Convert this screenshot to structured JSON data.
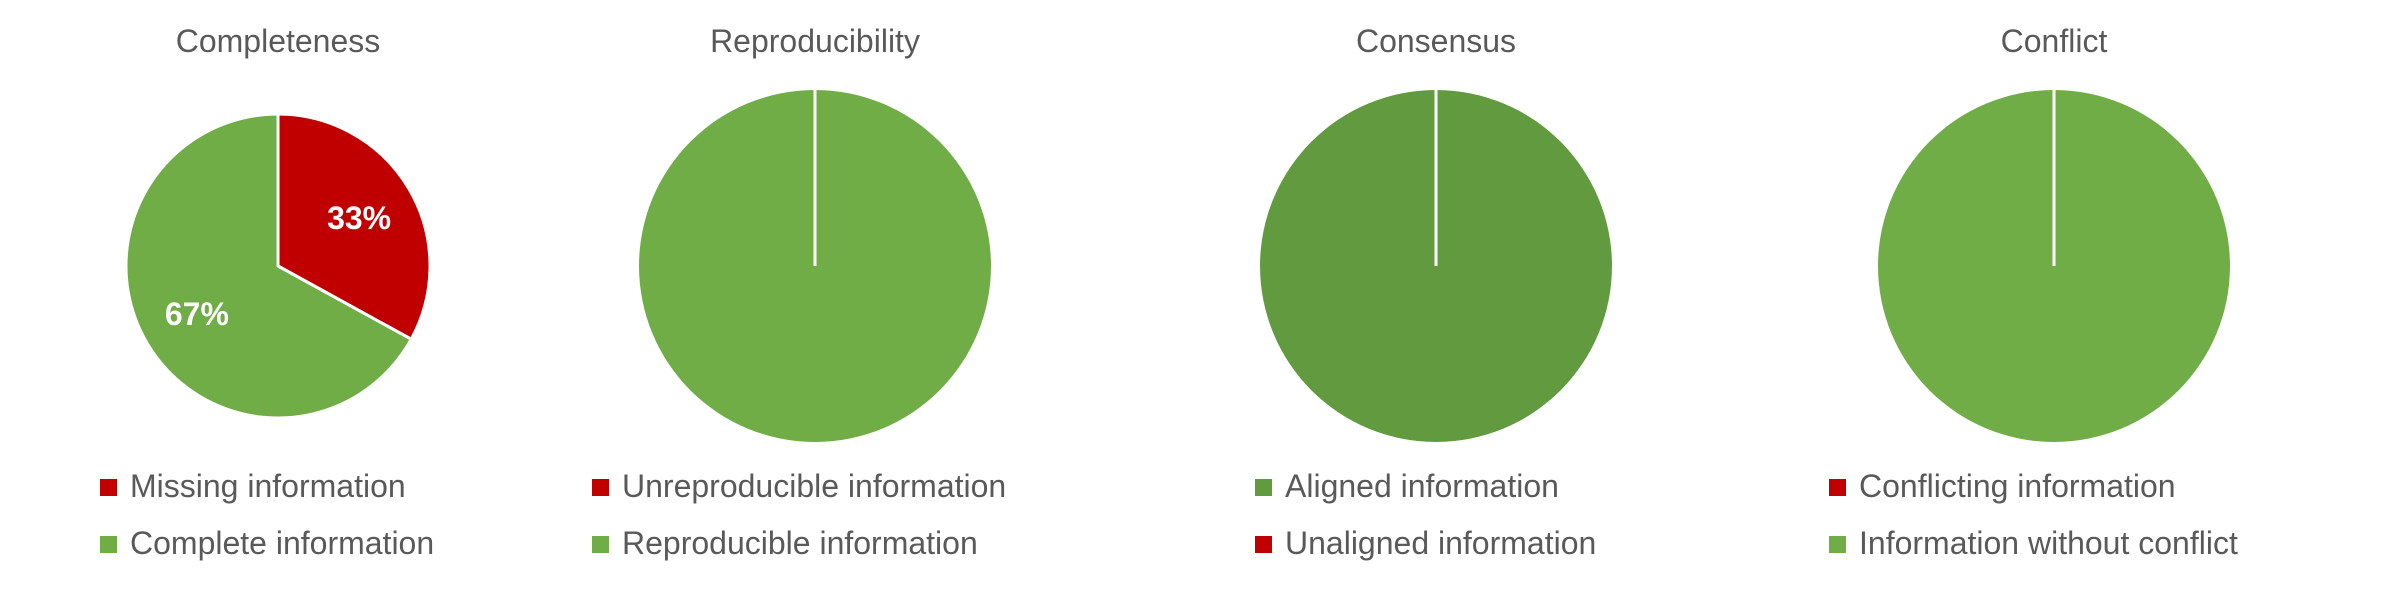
{
  "chart_data": [
    {
      "type": "pie",
      "title": "Completeness",
      "slices": [
        {
          "label": "Missing information",
          "value": 33,
          "color": "#C00000",
          "data_label": "33%"
        },
        {
          "label": "Complete information",
          "value": 67,
          "color": "#70AD47",
          "data_label": "67%"
        }
      ],
      "legend": "bottom"
    },
    {
      "type": "pie",
      "title": "Reproducibility",
      "slices": [
        {
          "label": "Unreproducible information",
          "value": 0,
          "color": "#C00000",
          "data_label": ""
        },
        {
          "label": "Reproducible information",
          "value": 100,
          "color": "#70AD47",
          "data_label": ""
        }
      ],
      "legend": "bottom"
    },
    {
      "type": "pie",
      "title": "Consensus",
      "slices": [
        {
          "label": "Aligned information",
          "value": 100,
          "color": "#629A40",
          "data_label": ""
        },
        {
          "label": "Unaligned information",
          "value": 0,
          "color": "#C00000",
          "data_label": ""
        }
      ],
      "legend": "bottom"
    },
    {
      "type": "pie",
      "title": "Conflict",
      "slices": [
        {
          "label": "Conflicting information",
          "value": 0,
          "color": "#C00000",
          "data_label": ""
        },
        {
          "label": "Information without conflict",
          "value": 100,
          "color": "#70AD47",
          "data_label": ""
        }
      ],
      "legend": "bottom"
    }
  ]
}
